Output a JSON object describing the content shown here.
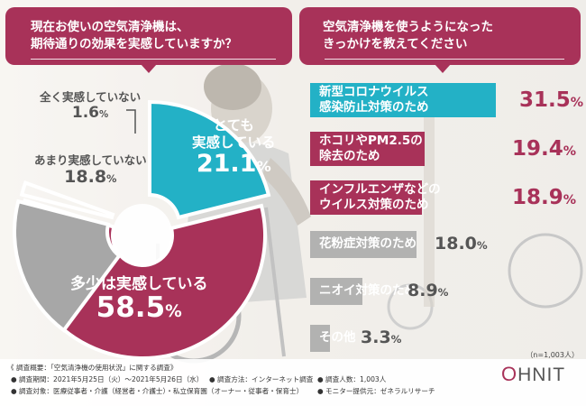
{
  "left_header": {
    "question_line1": "現在お使いの空気清浄機は、",
    "question_line2": "期待通りの効果を実感していますか？"
  },
  "right_header": {
    "question_line1": "空気清浄機を使うようになった",
    "question_line2": "きっかけを教えてください"
  },
  "sample_size": "（n=1,003人）",
  "footer": {
    "overview": "《 調査概要：「空気清浄機の使用状況」に関する調査》",
    "period": "● 調査期間：2021年5月25日（火）～2021年5月26日（水）",
    "method": "● 調査方法：インターネット調査",
    "respondents": "● 調査人数：1,003人",
    "target": "● 調査対象：医療従事者・介護（経営者・介護士）・私立保育園（オーナー・従事者・保育士）",
    "provider": "● モニター提供元：ゼネラルリサーチ"
  },
  "logo": {
    "mark": "O",
    "text": "HNIT"
  },
  "colors": {
    "header": "#a83259",
    "crimson": "#a83259",
    "teal": "#23b1c6",
    "gray": "#a7a7a7",
    "white": "#ffffff"
  },
  "chart_data": [
    {
      "type": "pie",
      "title": "現在お使いの空気清浄機は、期待通りの効果を実感していますか？",
      "style": "donut",
      "slices": [
        {
          "label": "とても実感している",
          "value": 21.1,
          "unit": "%",
          "color": "#23b1c6"
        },
        {
          "label": "多少は実感している",
          "value": 58.5,
          "unit": "%",
          "color": "#a83259"
        },
        {
          "label": "あまり実感していない",
          "value": 18.8,
          "unit": "%",
          "color": "#a7a7a7"
        },
        {
          "label": "全く実感していない",
          "value": 1.6,
          "unit": "%",
          "color": "#ffffff"
        }
      ]
    },
    {
      "type": "bar",
      "orientation": "horizontal",
      "title": "空気清浄機を使うようになったきっかけを教えてください",
      "unit": "%",
      "categories": [
        [
          "新型コロナウイルス",
          "感染防止対策のため"
        ],
        [
          "ホコリやPM2.5の",
          "除去のため"
        ],
        [
          "インフルエンザなどの",
          "ウイルス対策のため"
        ],
        [
          "花粉症対策のため"
        ],
        [
          "ニオイ対策のため"
        ],
        [
          "その他"
        ]
      ],
      "values": [
        31.5,
        19.4,
        18.9,
        18.0,
        8.9,
        3.3
      ],
      "colors": [
        "#23b1c6",
        "#a83259",
        "#a83259",
        "#a7a7a7",
        "#a7a7a7",
        "#a7a7a7"
      ],
      "value_colors": [
        "#a83259",
        "#a83259",
        "#a83259",
        "#555555",
        "#555555",
        "#555555"
      ],
      "xlim": [
        0,
        31.5
      ]
    }
  ]
}
